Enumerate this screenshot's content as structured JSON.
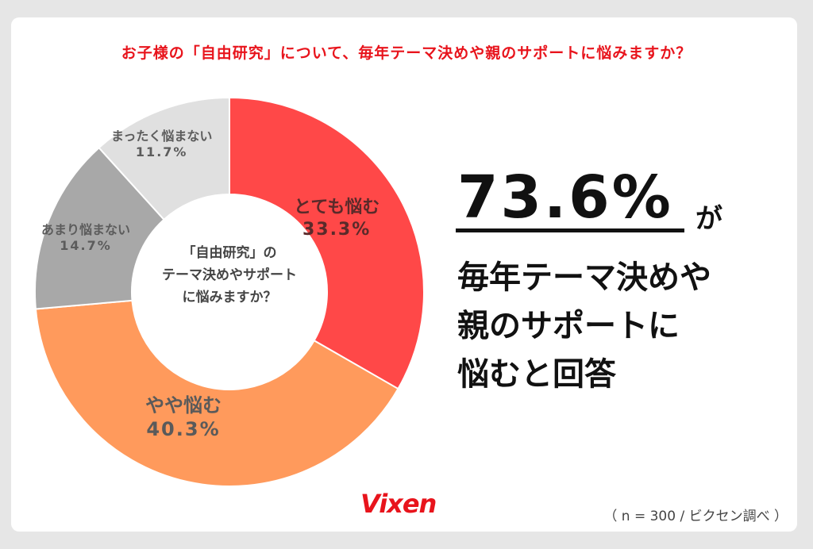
{
  "title": "お子様の「自由研究」について、毎年テーマ決めや親のサポートに悩みますか？",
  "chart_data": {
    "type": "pie",
    "title": "お子様の「自由研究」について、毎年テーマ決めや親のサポートに悩みますか？",
    "center_label": [
      "「自由研究」の",
      "テーマ決めやサポート",
      "に悩みますか？"
    ],
    "slices": [
      {
        "label": "とても悩む",
        "value": 33.3,
        "display": "33.3%",
        "color": "#ff4848"
      },
      {
        "label": "やや悩む",
        "value": 40.3,
        "display": "40.3%",
        "color": "#ff9a5c"
      },
      {
        "label": "あまり悩まない",
        "value": 14.7,
        "display": "14.7%",
        "color": "#a8a8a8"
      },
      {
        "label": "まったく悩まない",
        "value": 11.7,
        "display": "11.7%",
        "color": "#e0e0e0"
      }
    ]
  },
  "highlight": {
    "number": "73.6%",
    "suffix": "が",
    "message": [
      "毎年テーマ決めや",
      "親のサポートに",
      "悩むと回答"
    ]
  },
  "logo": "Vixen",
  "footnote": "（ n = 300 / ビクセン調べ ）"
}
